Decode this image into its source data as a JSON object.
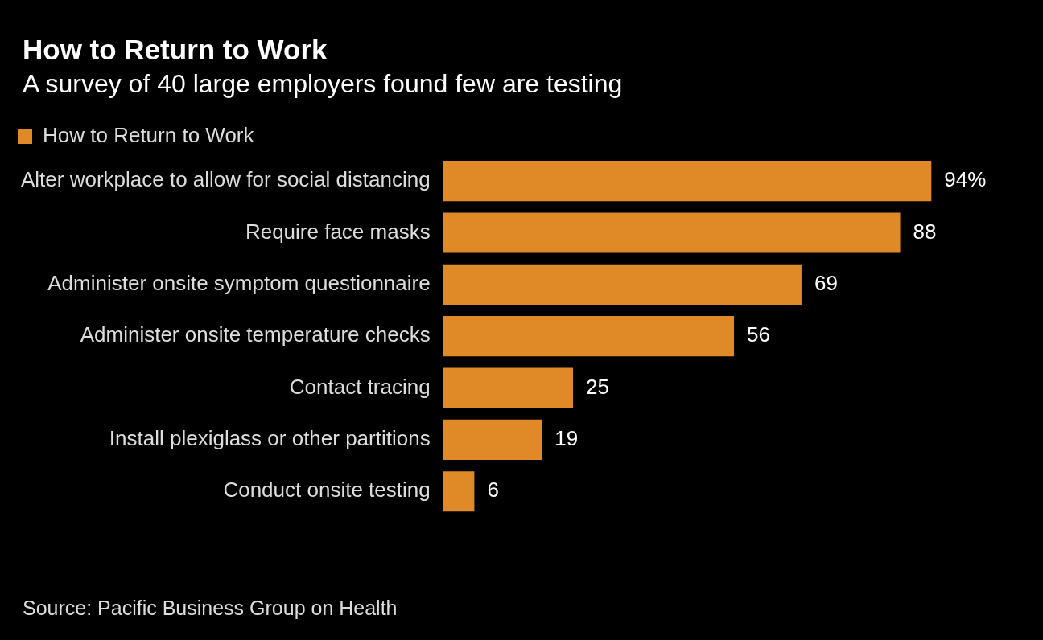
{
  "chart_data": {
    "type": "bar",
    "orientation": "horizontal",
    "title": "How to Return to Work",
    "subtitle": "A survey of 40 large employers found few are testing",
    "categories": [
      "Alter workplace to allow for social distancing",
      "Require face masks",
      "Administer onsite symptom questionnaire",
      "Administer onsite temperature checks",
      "Contact tracing",
      "Install plexiglass or other partitions",
      "Conduct onsite testing"
    ],
    "series": [
      {
        "name": "How to Return to Work",
        "color": "#df8a26",
        "values": [
          94,
          88,
          69,
          56,
          25,
          19,
          6
        ],
        "value_labels": [
          "94%",
          "88",
          "69",
          "56",
          "25",
          "19",
          "6"
        ]
      }
    ],
    "legend": "top left",
    "annotations": [
      "Source: Pacific Business Group on Health"
    ]
  }
}
